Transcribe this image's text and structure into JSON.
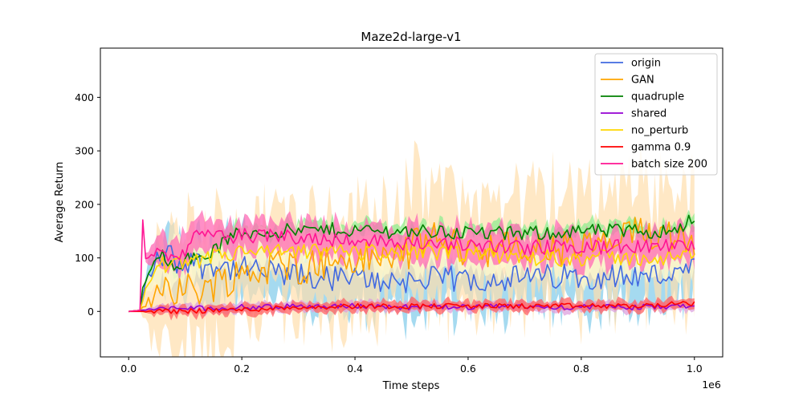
{
  "chart_data": {
    "type": "line",
    "title": "Maze2d-large-v1",
    "xlabel": "Time steps",
    "ylabel": "Average Return",
    "x_multiplier_label": "1e6",
    "xlim": [
      -0.05,
      1.05
    ],
    "ylim": [
      -85,
      492
    ],
    "xticks": [
      0.0,
      0.2,
      0.4,
      0.6,
      0.8,
      1.0
    ],
    "xtick_labels": [
      "0.0",
      "0.2",
      "0.4",
      "0.6",
      "0.8",
      "1.0"
    ],
    "yticks": [
      0,
      100,
      200,
      300,
      400
    ],
    "ytick_labels": [
      "0",
      "100",
      "200",
      "300",
      "400"
    ],
    "grid": false,
    "legend_position": "top-right",
    "series": [
      {
        "name": "origin",
        "color": "#4169e1",
        "band_color": "#87ceeb",
        "keys": [
          [
            0.0,
            0
          ],
          [
            0.02,
            2
          ],
          [
            0.03,
            55
          ],
          [
            0.05,
            95
          ],
          [
            0.07,
            110
          ],
          [
            0.09,
            85
          ],
          [
            0.11,
            100
          ],
          [
            0.13,
            85
          ],
          [
            0.15,
            90
          ],
          [
            0.18,
            80
          ],
          [
            0.2,
            78
          ],
          [
            0.23,
            75
          ],
          [
            0.26,
            70
          ],
          [
            0.28,
            68
          ],
          [
            0.3,
            65
          ],
          [
            0.33,
            62
          ],
          [
            0.36,
            62
          ],
          [
            0.4,
            60
          ],
          [
            0.45,
            58
          ],
          [
            0.5,
            58
          ],
          [
            0.55,
            60
          ],
          [
            0.6,
            60
          ],
          [
            0.65,
            62
          ],
          [
            0.7,
            62
          ],
          [
            0.75,
            65
          ],
          [
            0.8,
            65
          ],
          [
            0.85,
            68
          ],
          [
            0.9,
            65
          ],
          [
            0.95,
            68
          ],
          [
            1.0,
            75
          ]
        ],
        "amp": 25,
        "band": [
          15,
          90
        ]
      },
      {
        "name": "GAN",
        "color": "#ffa500",
        "band_color": "#ffdead",
        "keys": [
          [
            0.0,
            0
          ],
          [
            0.02,
            2
          ],
          [
            0.04,
            20
          ],
          [
            0.06,
            60
          ],
          [
            0.08,
            45
          ],
          [
            0.1,
            40
          ],
          [
            0.12,
            42
          ],
          [
            0.14,
            48
          ],
          [
            0.16,
            55
          ],
          [
            0.18,
            65
          ],
          [
            0.2,
            70
          ],
          [
            0.23,
            78
          ],
          [
            0.26,
            85
          ],
          [
            0.3,
            85
          ],
          [
            0.35,
            92
          ],
          [
            0.4,
            95
          ],
          [
            0.45,
            100
          ],
          [
            0.5,
            115
          ],
          [
            0.53,
            140
          ],
          [
            0.56,
            125
          ],
          [
            0.6,
            118
          ],
          [
            0.65,
            118
          ],
          [
            0.7,
            115
          ],
          [
            0.75,
            115
          ],
          [
            0.8,
            118
          ],
          [
            0.85,
            125
          ],
          [
            0.9,
            145
          ],
          [
            0.95,
            150
          ],
          [
            1.0,
            140
          ]
        ],
        "amp": 35,
        "band": [
          25,
          170
        ]
      },
      {
        "name": "quadruple",
        "color": "#008000",
        "band_color": "#90ee90",
        "keys": [
          [
            0.0,
            0
          ],
          [
            0.02,
            2
          ],
          [
            0.025,
            45
          ],
          [
            0.04,
            80
          ],
          [
            0.06,
            105
          ],
          [
            0.08,
            90
          ],
          [
            0.1,
            95
          ],
          [
            0.12,
            100
          ],
          [
            0.14,
            108
          ],
          [
            0.16,
            120
          ],
          [
            0.18,
            140
          ],
          [
            0.2,
            145
          ],
          [
            0.25,
            150
          ],
          [
            0.3,
            150
          ],
          [
            0.35,
            152
          ],
          [
            0.4,
            152
          ],
          [
            0.45,
            150
          ],
          [
            0.5,
            150
          ],
          [
            0.55,
            148
          ],
          [
            0.6,
            148
          ],
          [
            0.65,
            145
          ],
          [
            0.7,
            145
          ],
          [
            0.75,
            148
          ],
          [
            0.8,
            150
          ],
          [
            0.85,
            150
          ],
          [
            0.9,
            150
          ],
          [
            0.95,
            150
          ],
          [
            1.0,
            172
          ]
        ],
        "amp": 14,
        "band": [
          8,
          20
        ]
      },
      {
        "name": "shared",
        "color": "#9400d3",
        "band_color": "#dda0dd",
        "keys": [
          [
            0.0,
            0
          ],
          [
            0.02,
            2
          ],
          [
            0.06,
            5
          ],
          [
            0.1,
            6
          ],
          [
            0.15,
            6
          ],
          [
            0.2,
            8
          ],
          [
            0.25,
            8
          ],
          [
            0.3,
            10
          ],
          [
            0.35,
            10
          ],
          [
            0.4,
            10
          ],
          [
            0.5,
            8
          ],
          [
            0.6,
            8
          ],
          [
            0.7,
            9
          ],
          [
            0.8,
            8
          ],
          [
            0.9,
            8
          ],
          [
            1.0,
            10
          ]
        ],
        "amp": 5,
        "band": [
          4,
          12
        ]
      },
      {
        "name": "no_perturb",
        "color": "#ffd700",
        "band_color": "#fffacd",
        "keys": [
          [
            0.0,
            0
          ],
          [
            0.02,
            2
          ],
          [
            0.03,
            40
          ],
          [
            0.05,
            85
          ],
          [
            0.07,
            90
          ],
          [
            0.1,
            85
          ],
          [
            0.13,
            95
          ],
          [
            0.16,
            105
          ],
          [
            0.2,
            110
          ],
          [
            0.25,
            110
          ],
          [
            0.3,
            110
          ],
          [
            0.35,
            112
          ],
          [
            0.4,
            112
          ],
          [
            0.45,
            110
          ],
          [
            0.5,
            110
          ],
          [
            0.55,
            108
          ],
          [
            0.6,
            105
          ],
          [
            0.65,
            105
          ],
          [
            0.7,
            102
          ],
          [
            0.75,
            100
          ],
          [
            0.8,
            100
          ],
          [
            0.85,
            100
          ],
          [
            0.9,
            100
          ],
          [
            0.95,
            100
          ],
          [
            1.0,
            105
          ]
        ],
        "amp": 16,
        "band": [
          18,
          50
        ]
      },
      {
        "name": "gamma 0.9",
        "color": "#ff0000",
        "band_color": "#ff6060",
        "keys": [
          [
            0.0,
            0
          ],
          [
            0.05,
            0
          ],
          [
            0.1,
            1
          ],
          [
            0.15,
            2
          ],
          [
            0.2,
            3
          ],
          [
            0.25,
            6
          ],
          [
            0.3,
            8
          ],
          [
            0.35,
            9
          ],
          [
            0.4,
            10
          ],
          [
            0.5,
            10
          ],
          [
            0.6,
            10
          ],
          [
            0.7,
            10
          ],
          [
            0.8,
            10
          ],
          [
            0.9,
            10
          ],
          [
            1.0,
            15
          ]
        ],
        "amp": 5,
        "band": [
          4,
          14
        ]
      },
      {
        "name": "batch size 200",
        "color": "#ff1493",
        "band_color": "#ff69b4",
        "keys": [
          [
            0.0,
            0
          ],
          [
            0.02,
            2
          ],
          [
            0.025,
            170
          ],
          [
            0.03,
            100
          ],
          [
            0.05,
            110
          ],
          [
            0.08,
            100
          ],
          [
            0.1,
            115
          ],
          [
            0.12,
            140
          ],
          [
            0.14,
            145
          ],
          [
            0.16,
            138
          ],
          [
            0.2,
            142
          ],
          [
            0.25,
            140
          ],
          [
            0.3,
            140
          ],
          [
            0.35,
            135
          ],
          [
            0.4,
            135
          ],
          [
            0.45,
            130
          ],
          [
            0.5,
            128
          ],
          [
            0.55,
            125
          ],
          [
            0.6,
            125
          ],
          [
            0.65,
            122
          ],
          [
            0.7,
            120
          ],
          [
            0.75,
            120
          ],
          [
            0.8,
            120
          ],
          [
            0.85,
            120
          ],
          [
            0.9,
            120
          ],
          [
            0.95,
            122
          ],
          [
            1.0,
            120
          ]
        ],
        "amp": 14,
        "band": [
          18,
          45
        ]
      }
    ]
  }
}
